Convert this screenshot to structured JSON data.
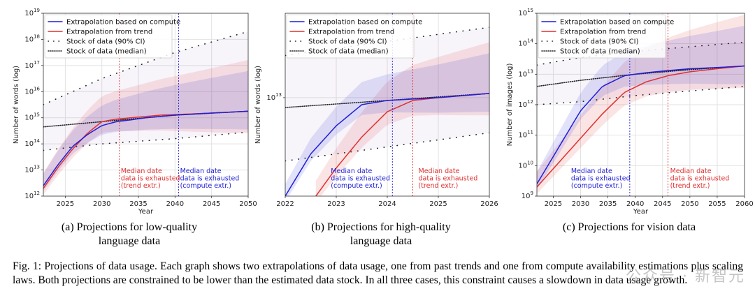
{
  "panels": [
    {
      "id": "a",
      "caption_line1": "(a) Projections for low-quality",
      "caption_line2": "language data",
      "ylabel": "Number of words (log)",
      "xlabel": "Year",
      "xlim": [
        2022,
        2050
      ],
      "xticks": [
        "2025",
        "2030",
        "2035",
        "2040",
        "2045",
        "2050"
      ],
      "xtick_values": [
        2025,
        2030,
        2035,
        2040,
        2045,
        2050
      ],
      "yrange_log": [
        12,
        19
      ],
      "yticks": [
        {
          "base": "10",
          "exp": "12",
          "v": 12
        },
        {
          "base": "10",
          "exp": "13",
          "v": 13
        },
        {
          "base": "10",
          "exp": "14",
          "v": 14
        },
        {
          "base": "10",
          "exp": "15",
          "v": 15
        },
        {
          "base": "10",
          "exp": "16",
          "v": 16
        },
        {
          "base": "10",
          "exp": "17",
          "v": 17
        },
        {
          "base": "10",
          "exp": "18",
          "v": 18
        },
        {
          "base": "10",
          "exp": "19",
          "v": 19
        }
      ],
      "compute_date": 2040.5,
      "trend_date": 2032.4,
      "ann_trend": [
        "Median date",
        "data is exhausted",
        "(trend extr.)"
      ],
      "ann_compute": [
        "Median date",
        "data is exhausted",
        "(compute extr.)"
      ],
      "legend_pos": "top-left"
    },
    {
      "id": "b",
      "caption_line1": "(b) Projections for high-quality",
      "caption_line2": "language data",
      "ylabel": "Number of words (log)",
      "xlabel": "",
      "xlim": [
        2022,
        2026
      ],
      "xticks": [
        "2022",
        "2023",
        "2024",
        "2025",
        "2026"
      ],
      "xtick_values": [
        2022,
        2023,
        2024,
        2025,
        2026
      ],
      "yrange_log": [
        12.3,
        13.6
      ],
      "yticks": [
        {
          "base": "10",
          "exp": "13",
          "v": 13
        }
      ],
      "compute_date": 2024.1,
      "trend_date": 2024.5,
      "ann_trend": [
        "Median date",
        "data is exhausted",
        "(trend extr.)"
      ],
      "ann_compute": [
        "Median date",
        "data is exhausted",
        "(compute extr.)"
      ],
      "legend_pos": "top-right"
    },
    {
      "id": "c",
      "caption_line1": "(c) Projections for vision data",
      "caption_line2": "",
      "ylabel": "Number of images (log)",
      "xlabel": "Year",
      "xlim": [
        2022,
        2060
      ],
      "xticks": [
        "2025",
        "2030",
        "2035",
        "2040",
        "2045",
        "2050",
        "2055",
        "2060"
      ],
      "xtick_values": [
        2025,
        2030,
        2035,
        2040,
        2045,
        2050,
        2055,
        2060
      ],
      "yrange_log": [
        9,
        15
      ],
      "yticks": [
        {
          "base": "10",
          "exp": "9",
          "v": 9
        },
        {
          "base": "10",
          "exp": "10",
          "v": 10
        },
        {
          "base": "10",
          "exp": "11",
          "v": 11
        },
        {
          "base": "10",
          "exp": "12",
          "v": 12
        },
        {
          "base": "10",
          "exp": "13",
          "v": 13
        },
        {
          "base": "10",
          "exp": "14",
          "v": 14
        },
        {
          "base": "10",
          "exp": "15",
          "v": 15
        }
      ],
      "compute_date": 2039,
      "trend_date": 2046,
      "ann_trend": [
        "Median date",
        "data is exhausted",
        "(trend extr.)"
      ],
      "ann_compute": [
        "Median date",
        "data is exhausted",
        "(compute extr.)"
      ],
      "legend_pos": "top-left"
    }
  ],
  "legend": {
    "compute": "Extrapolation based on compute",
    "trend": "Extrapolation from trend",
    "ci": "Stock of data (90% CI)",
    "median": "Stock of data (median)"
  },
  "colors": {
    "compute": "#1f1fd6",
    "trend": "#e03030",
    "stock": "#222222"
  },
  "figure_caption": "Fig. 1: Projections of data usage. Each graph shows two extrapolations of data usage, one from past trends and one from compute availability estimations plus scaling laws. Both projections are constrained to be lower than the estimated data stock. In all three cases, this constraint causes a slowdown in data usage growth.",
  "watermark": "公众号 · 新智元",
  "chart_data": [
    {
      "type": "line",
      "title": "Projections for low-quality language data",
      "xlabel": "Year",
      "ylabel": "Number of words (log)",
      "xlim": [
        2022,
        2050
      ],
      "ylim_log10": [
        12,
        19
      ],
      "series": [
        {
          "name": "Extrapolation based on compute",
          "x": [
            2022,
            2024,
            2026,
            2028,
            2030,
            2032,
            2034,
            2036,
            2038,
            2040,
            2045,
            2050
          ],
          "log10_y": [
            12.4,
            13.2,
            13.9,
            14.35,
            14.7,
            14.85,
            14.92,
            15.0,
            15.05,
            15.1,
            15.18,
            15.25
          ]
        },
        {
          "name": "Extrapolation from trend",
          "x": [
            2022,
            2024,
            2026,
            2028,
            2030,
            2032,
            2034,
            2036,
            2038,
            2040,
            2045,
            2050
          ],
          "log10_y": [
            12.3,
            13.1,
            13.8,
            14.4,
            14.85,
            14.95,
            15.0,
            15.05,
            15.1,
            15.12,
            15.18,
            15.25
          ]
        },
        {
          "name": "Stock of data (median)",
          "x": [
            2022,
            2030,
            2040,
            2050
          ],
          "log10_y": [
            14.65,
            14.85,
            15.1,
            15.25
          ]
        },
        {
          "name": "Stock of data (90% CI) low",
          "x": [
            2022,
            2030,
            2040,
            2050
          ],
          "log10_y": [
            13.75,
            14.0,
            14.2,
            14.45
          ]
        },
        {
          "name": "Stock of data (90% CI) high",
          "x": [
            2022,
            2030,
            2040,
            2050
          ],
          "log10_y": [
            15.5,
            16.5,
            17.5,
            18.3
          ]
        }
      ]
    },
    {
      "type": "line",
      "title": "Projections for high-quality language data",
      "xlabel": "",
      "ylabel": "Number of words (log)",
      "xlim": [
        2022,
        2026
      ],
      "ylim_log10": [
        12.3,
        13.6
      ],
      "series": [
        {
          "name": "Extrapolation based on compute",
          "x": [
            2022,
            2022.5,
            2023,
            2023.5,
            2024,
            2024.5,
            2025,
            2026
          ],
          "log10_y": [
            12.3,
            12.6,
            12.8,
            12.95,
            12.98,
            12.99,
            13.0,
            13.03
          ]
        },
        {
          "name": "Extrapolation from trend",
          "x": [
            2022.6,
            2023,
            2023.5,
            2024,
            2024.5,
            2025,
            2026
          ],
          "log10_y": [
            12.3,
            12.5,
            12.72,
            12.9,
            12.98,
            13.0,
            13.03
          ]
        },
        {
          "name": "Stock of data (median)",
          "x": [
            2022,
            2024,
            2026
          ],
          "log10_y": [
            12.93,
            12.98,
            13.03
          ]
        },
        {
          "name": "Stock of data (90% CI) low",
          "x": [
            2022,
            2024,
            2026
          ],
          "log10_y": [
            12.55,
            12.65,
            12.75
          ]
        },
        {
          "name": "Stock of data (90% CI) high",
          "x": [
            2022,
            2024,
            2026
          ],
          "log10_y": [
            13.3,
            13.4,
            13.5
          ]
        }
      ]
    },
    {
      "type": "line",
      "title": "Projections for vision data",
      "xlabel": "Year",
      "ylabel": "Number of images (log)",
      "xlim": [
        2022,
        2060
      ],
      "ylim_log10": [
        9,
        15
      ],
      "series": [
        {
          "name": "Extrapolation based on compute",
          "x": [
            2022,
            2026,
            2030,
            2034,
            2038,
            2042,
            2046,
            2050,
            2055,
            2060
          ],
          "log10_y": [
            9.4,
            10.6,
            11.8,
            12.6,
            12.95,
            13.05,
            13.12,
            13.18,
            13.22,
            13.27
          ]
        },
        {
          "name": "Extrapolation from trend",
          "x": [
            2022,
            2026,
            2030,
            2034,
            2038,
            2042,
            2046,
            2050,
            2055,
            2060
          ],
          "log10_y": [
            9.3,
            10.1,
            10.9,
            11.7,
            12.4,
            12.75,
            12.95,
            13.08,
            13.18,
            13.27
          ]
        },
        {
          "name": "Stock of data (median)",
          "x": [
            2022,
            2030,
            2040,
            2050,
            2060
          ],
          "log10_y": [
            12.6,
            12.8,
            13.0,
            13.15,
            13.27
          ]
        },
        {
          "name": "Stock of data (90% CI) low",
          "x": [
            2022,
            2030,
            2040,
            2050,
            2060
          ],
          "log10_y": [
            12.0,
            12.1,
            12.3,
            12.45,
            12.6
          ]
        },
        {
          "name": "Stock of data (90% CI) high",
          "x": [
            2022,
            2030,
            2040,
            2050,
            2060
          ],
          "log10_y": [
            13.3,
            13.55,
            13.75,
            13.9,
            14.05
          ]
        }
      ]
    }
  ]
}
